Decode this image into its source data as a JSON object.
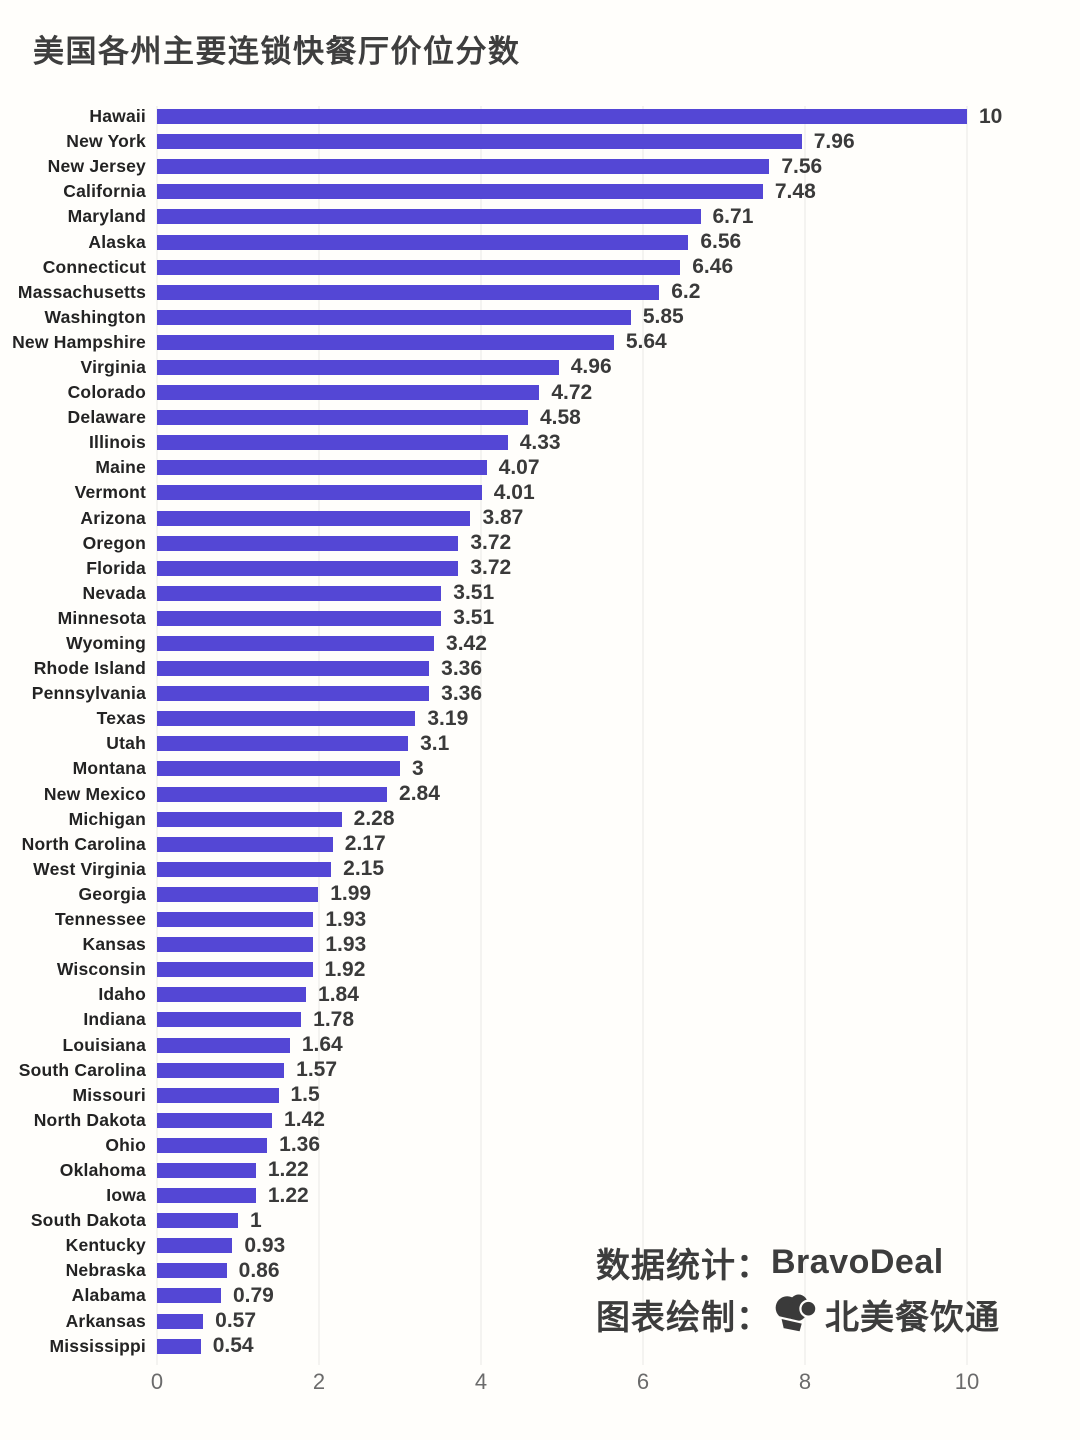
{
  "title": "美国各州主要连锁快餐厅价位分数",
  "chart_data": {
    "type": "bar",
    "orientation": "horizontal",
    "title": "美国各州主要连锁快餐厅价位分数",
    "categories": [
      "Hawaii",
      "New York",
      "New Jersey",
      "California",
      "Maryland",
      "Alaska",
      "Connecticut",
      "Massachusetts",
      "Washington",
      "New Hampshire",
      "Virginia",
      "Colorado",
      "Delaware",
      "Illinois",
      "Maine",
      "Vermont",
      "Arizona",
      "Oregon",
      "Florida",
      "Nevada",
      "Minnesota",
      "Wyoming",
      "Rhode Island",
      "Pennsylvania",
      "Texas",
      "Utah",
      "Montana",
      "New Mexico",
      "Michigan",
      "North Carolina",
      "West Virginia",
      "Georgia",
      "Tennessee",
      "Kansas",
      "Wisconsin",
      "Idaho",
      "Indiana",
      "Louisiana",
      "South Carolina",
      "Missouri",
      "North Dakota",
      "Ohio",
      "Oklahoma",
      "Iowa",
      "South Dakota",
      "Kentucky",
      "Nebraska",
      "Alabama",
      "Arkansas",
      "Mississippi"
    ],
    "values": [
      10,
      7.96,
      7.56,
      7.48,
      6.71,
      6.56,
      6.46,
      6.2,
      5.85,
      5.64,
      4.96,
      4.72,
      4.58,
      4.33,
      4.07,
      4.01,
      3.87,
      3.72,
      3.72,
      3.51,
      3.51,
      3.42,
      3.36,
      3.36,
      3.19,
      3.1,
      3,
      2.84,
      2.28,
      2.17,
      2.15,
      1.99,
      1.93,
      1.93,
      1.92,
      1.84,
      1.78,
      1.64,
      1.57,
      1.5,
      1.42,
      1.36,
      1.22,
      1.22,
      1,
      0.93,
      0.86,
      0.79,
      0.57,
      0.54
    ],
    "xlim": [
      0,
      10
    ],
    "x_ticks": [
      0,
      2,
      4,
      6,
      8,
      10
    ],
    "grid": "vertical-only",
    "legend": "none",
    "bar_color": "#5447d5",
    "background_color": "#fffefb"
  },
  "annotation": {
    "stats_label": "数据统计：",
    "stats_value": "BravoDeal",
    "credit_label": "图表绘制：",
    "credit_value": "北美餐饮通",
    "logo_icon": "chef-hat-icon"
  }
}
